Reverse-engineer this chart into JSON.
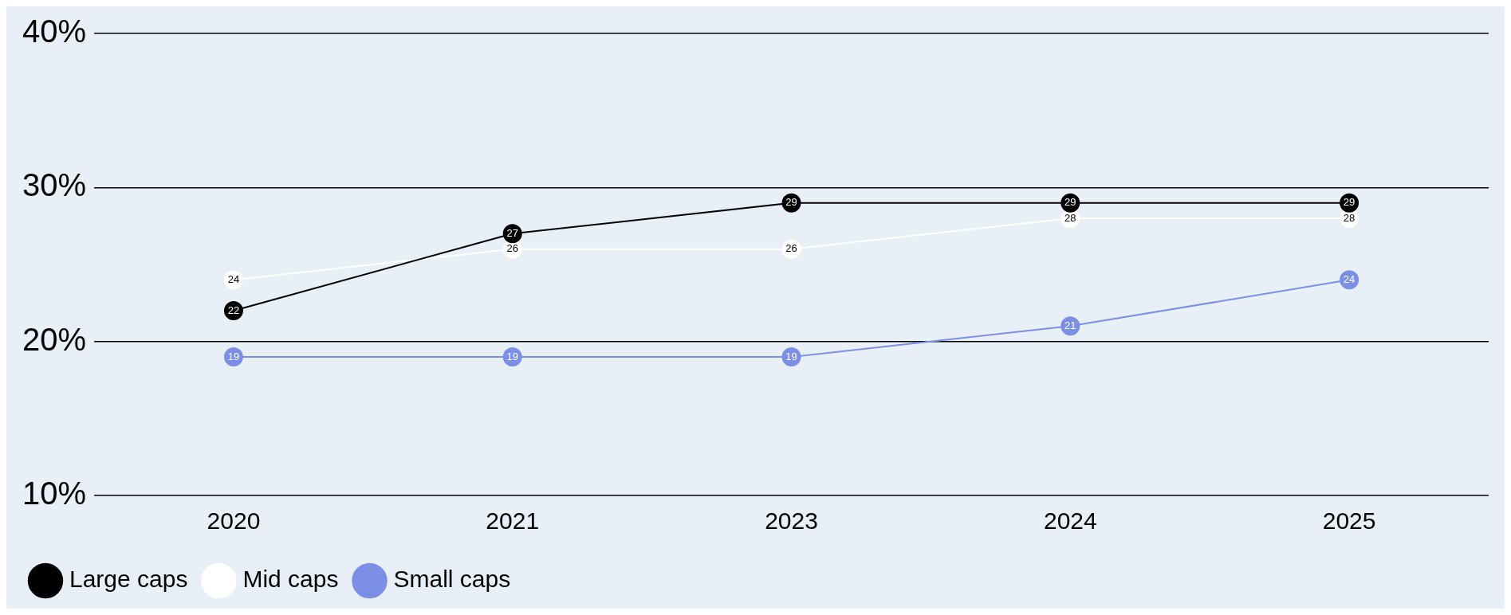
{
  "chart_data": {
    "type": "line",
    "categories": [
      "2020",
      "2021",
      "2023",
      "2024",
      "2025"
    ],
    "series": [
      {
        "name": "Large caps",
        "color": "#000000",
        "values": [
          22,
          27,
          29,
          29,
          29
        ]
      },
      {
        "name": "Mid caps",
        "color": "#ffffff",
        "values": [
          24,
          26,
          26,
          28,
          28
        ]
      },
      {
        "name": "Small caps",
        "color": "#7b8fe6",
        "values": [
          19,
          19,
          19,
          21,
          24
        ]
      }
    ],
    "ylim": [
      10,
      40
    ],
    "yticks": [
      {
        "value": 10,
        "label": "10%"
      },
      {
        "value": 20,
        "label": "20%"
      },
      {
        "value": 30,
        "label": "30%"
      },
      {
        "value": 40,
        "label": "40%"
      }
    ],
    "grid": "y",
    "legend": "bottom left",
    "marker": "circle",
    "line_style": "solid",
    "data_labels": true
  }
}
